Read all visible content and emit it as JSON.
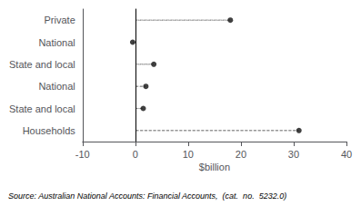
{
  "chart_data": {
    "type": "dot",
    "orientation": "horizontal",
    "categories": [
      "Private",
      "National",
      "State and local",
      "National",
      "State and local",
      "Households"
    ],
    "values": [
      18.0,
      -0.5,
      3.5,
      2.0,
      1.5,
      31.0
    ],
    "color": "#111111",
    "marker": "circle",
    "line_style": "dashed",
    "xlabel": "$billion",
    "xlim": [
      -10,
      40
    ],
    "xticks": [
      -10,
      0,
      10,
      20,
      30,
      40
    ],
    "grid": false,
    "source": "Source: Australian National Accounts: Financial Accounts,  (cat.  no.  5232.0)"
  }
}
